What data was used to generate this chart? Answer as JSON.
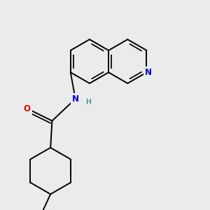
{
  "background_color": "#ebebeb",
  "bond_color": "#000000",
  "atom_colors": {
    "N_amide": "#0000cc",
    "N_pyridine": "#0000cc",
    "O": "#dd0000",
    "H": "#007070",
    "C": "#000000"
  },
  "figsize": [
    3.0,
    3.0
  ],
  "dpi": 100
}
